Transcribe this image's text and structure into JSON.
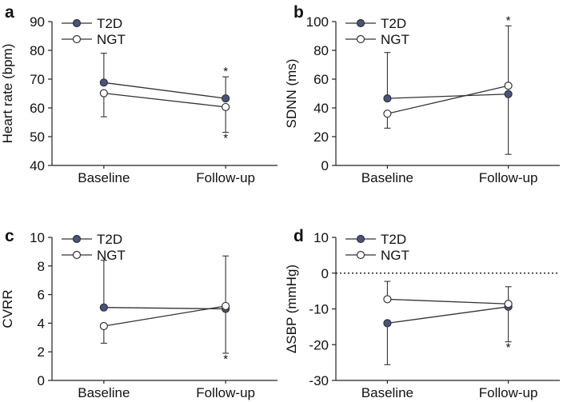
{
  "colors": {
    "T2D": "#4a5280",
    "NGT": "#ffffff",
    "axis": "#222222"
  },
  "chart_data": [
    {
      "panel": "a",
      "type": "line",
      "ylabel": "Heart rate (bpm)",
      "categories": [
        "Baseline",
        "Follow-up"
      ],
      "ylim": [
        40,
        90
      ],
      "yticks": [
        40,
        50,
        60,
        70,
        80,
        90
      ],
      "legend": {
        "position": "top-left",
        "entries": [
          "T2D",
          "NGT"
        ]
      },
      "series": [
        {
          "name": "T2D",
          "values": [
            68.8,
            63.3
          ],
          "err_up": [
            79,
            70.8
          ],
          "err_down": [
            null,
            null
          ],
          "stars_up": [
            false,
            true
          ],
          "stars_down": [
            false,
            false
          ]
        },
        {
          "name": "NGT",
          "values": [
            65.1,
            60.3
          ],
          "err_up": [
            null,
            null
          ],
          "err_down": [
            56.9,
            51.5
          ],
          "stars_up": [
            false,
            false
          ],
          "stars_down": [
            false,
            true
          ]
        }
      ]
    },
    {
      "panel": "b",
      "type": "line",
      "ylabel": "SDNN (ms)",
      "categories": [
        "Baseline",
        "Follow-up"
      ],
      "ylim": [
        0,
        100
      ],
      "yticks": [
        0,
        20,
        40,
        60,
        80,
        100
      ],
      "legend": {
        "position": "top-left",
        "entries": [
          "T2D",
          "NGT"
        ]
      },
      "series": [
        {
          "name": "T2D",
          "values": [
            46.6,
            49.6
          ],
          "err_up": [
            78.5,
            null
          ],
          "err_down": [
            null,
            7.7
          ],
          "stars_up": [
            false,
            false
          ],
          "stars_down": [
            false,
            false
          ]
        },
        {
          "name": "NGT",
          "values": [
            36,
            55.4
          ],
          "err_up": [
            null,
            97
          ],
          "err_down": [
            25.9,
            null
          ],
          "stars_up": [
            false,
            true
          ],
          "stars_down": [
            false,
            false
          ]
        }
      ]
    },
    {
      "panel": "c",
      "type": "line",
      "ylabel": "CVRR",
      "categories": [
        "Baseline",
        "Follow-up"
      ],
      "ylim": [
        0,
        10
      ],
      "yticks": [
        0,
        2,
        4,
        6,
        8,
        10
      ],
      "legend": {
        "position": "top-left",
        "entries": [
          "T2D",
          "NGT"
        ]
      },
      "series": [
        {
          "name": "T2D",
          "values": [
            5.1,
            5.0
          ],
          "err_up": [
            8.4,
            null
          ],
          "err_down": [
            null,
            1.9
          ],
          "stars_up": [
            false,
            false
          ],
          "stars_down": [
            false,
            true
          ]
        },
        {
          "name": "NGT",
          "values": [
            3.8,
            5.2
          ],
          "err_up": [
            null,
            8.7
          ],
          "err_down": [
            2.6,
            null
          ],
          "stars_up": [
            false,
            false
          ],
          "stars_down": [
            false,
            false
          ]
        }
      ]
    },
    {
      "panel": "d",
      "type": "line",
      "ylabel": "ΔSBP (mmHg)",
      "categories": [
        "Baseline",
        "Follow-up"
      ],
      "ylim": [
        -30,
        10
      ],
      "yticks": [
        -30,
        -20,
        -10,
        0,
        10
      ],
      "zero_line": true,
      "legend": {
        "position": "top-left",
        "entries": [
          "T2D",
          "NGT"
        ]
      },
      "series": [
        {
          "name": "T2D",
          "values": [
            -14,
            -9.4
          ],
          "err_up": [
            null,
            null
          ],
          "err_down": [
            -25.6,
            -19.2
          ],
          "stars_up": [
            false,
            false
          ],
          "stars_down": [
            false,
            true
          ]
        },
        {
          "name": "NGT",
          "values": [
            -7.3,
            -8.6
          ],
          "err_up": [
            -2.3,
            -3.8
          ],
          "err_down": [
            null,
            null
          ],
          "stars_up": [
            false,
            false
          ],
          "stars_down": [
            false,
            false
          ]
        }
      ]
    }
  ]
}
